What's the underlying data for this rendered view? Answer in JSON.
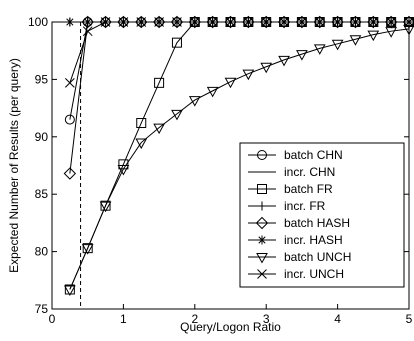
{
  "chart_data": {
    "type": "line",
    "title": "",
    "xlabel": "Query/Logon Ratio",
    "ylabel": "Expected Number of Results (per query)",
    "xlim": [
      0,
      5
    ],
    "ylim": [
      75,
      100
    ],
    "xticks": [
      0,
      1,
      2,
      3,
      4,
      5
    ],
    "yticks": [
      75,
      80,
      85,
      90,
      95,
      100
    ],
    "grid": false,
    "legend_position": "right",
    "reference_line": {
      "x": 0.4,
      "style": "dashed"
    },
    "series": [
      {
        "name": "batch CHN",
        "marker": "circle",
        "x": [
          0.25,
          0.5,
          0.75,
          1.0,
          1.25,
          1.5,
          1.75,
          2.0,
          2.25,
          2.5,
          2.75,
          3.0,
          3.25,
          3.5,
          3.75,
          4.0,
          4.25,
          4.5,
          4.75,
          5.0
        ],
        "y": [
          91.5,
          100,
          100,
          100,
          100,
          100,
          100,
          100,
          100,
          100,
          100,
          100,
          100,
          100,
          100,
          100,
          100,
          100,
          100,
          100
        ]
      },
      {
        "name": "incr. CHN",
        "marker": "none",
        "x": [
          0.25,
          0.5,
          0.75,
          1.0,
          1.25,
          1.5,
          1.75,
          2.0,
          2.25,
          2.5,
          2.75,
          3.0,
          3.25,
          3.5,
          3.75,
          4.0,
          4.25,
          4.5,
          4.75,
          5.0
        ],
        "y": [
          100,
          100,
          100,
          100,
          100,
          100,
          100,
          100,
          100,
          100,
          100,
          100,
          100,
          100,
          100,
          100,
          100,
          100,
          100,
          100
        ]
      },
      {
        "name": "batch FR",
        "marker": "square",
        "x": [
          0.25,
          0.5,
          0.75,
          1.0,
          1.25,
          1.5,
          1.75,
          2.0,
          2.25,
          2.5,
          2.75,
          3.0,
          3.25,
          3.5,
          3.75,
          4.0,
          4.25,
          4.5,
          4.75,
          5.0
        ],
        "y": [
          76.7,
          80.3,
          84.0,
          87.6,
          91.2,
          94.7,
          98.2,
          100,
          100,
          100,
          100,
          100,
          100,
          100,
          100,
          100,
          100,
          100,
          100,
          100
        ]
      },
      {
        "name": "incr. FR",
        "marker": "plus",
        "x": [
          0.25,
          0.5,
          0.75,
          1.0,
          1.25,
          1.5,
          1.75,
          2.0,
          2.25,
          2.5,
          2.75,
          3.0,
          3.25,
          3.5,
          3.75,
          4.0,
          4.25,
          4.5,
          4.75,
          5.0
        ],
        "y": [
          100,
          100,
          100,
          100,
          100,
          100,
          100,
          100,
          100,
          100,
          100,
          100,
          100,
          100,
          100,
          100,
          100,
          100,
          100,
          100
        ]
      },
      {
        "name": "batch HASH",
        "marker": "diamond",
        "x": [
          0.25,
          0.5,
          0.75,
          1.0,
          1.25,
          1.5,
          1.75,
          2.0,
          2.25,
          2.5,
          2.75,
          3.0,
          3.25,
          3.5,
          3.75,
          4.0,
          4.25,
          4.5,
          4.75,
          5.0
        ],
        "y": [
          86.8,
          100,
          100,
          100,
          100,
          100,
          100,
          100,
          100,
          100,
          100,
          100,
          100,
          100,
          100,
          100,
          100,
          100,
          100,
          100
        ]
      },
      {
        "name": "incr. HASH",
        "marker": "star",
        "x": [
          0.25,
          0.5,
          0.75,
          1.0,
          1.25,
          1.5,
          1.75,
          2.0,
          2.25,
          2.5,
          2.75,
          3.0,
          3.25,
          3.5,
          3.75,
          4.0,
          4.25,
          4.5,
          4.75,
          5.0
        ],
        "y": [
          100,
          100,
          100,
          100,
          100,
          100,
          100,
          100,
          100,
          100,
          100,
          100,
          100,
          100,
          100,
          100,
          100,
          100,
          100,
          100
        ]
      },
      {
        "name": "batch UNCH",
        "marker": "triangle-down",
        "x": [
          0.25,
          0.5,
          0.75,
          1.0,
          1.25,
          1.5,
          1.75,
          2.0,
          2.25,
          2.5,
          2.75,
          3.0,
          3.25,
          3.5,
          3.75,
          4.0,
          4.25,
          4.5,
          4.75,
          5.0
        ],
        "y": [
          76.7,
          80.3,
          84.0,
          87.2,
          89.5,
          90.8,
          92.0,
          93.2,
          94.0,
          94.8,
          95.5,
          96.1,
          96.7,
          97.2,
          97.7,
          98.1,
          98.5,
          98.9,
          99.2,
          99.4
        ]
      },
      {
        "name": "incr. UNCH",
        "marker": "x",
        "x": [
          0.25,
          0.5,
          0.75,
          1.0,
          1.25,
          1.5,
          1.75,
          2.0,
          2.25,
          2.5,
          2.75,
          3.0,
          3.25,
          3.5,
          3.75,
          4.0,
          4.25,
          4.5,
          4.75,
          5.0
        ],
        "y": [
          94.7,
          99.2,
          100,
          100,
          100,
          100,
          100,
          100,
          100,
          100,
          100,
          100,
          100,
          100,
          100,
          100,
          100,
          100,
          100,
          100
        ]
      }
    ]
  }
}
